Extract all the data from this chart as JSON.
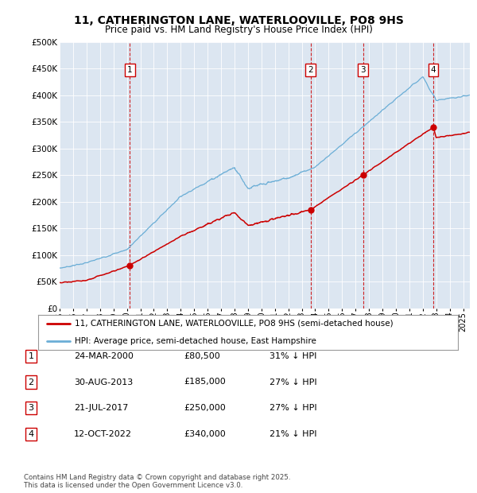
{
  "title": "11, CATHERINGTON LANE, WATERLOOVILLE, PO8 9HS",
  "subtitle": "Price paid vs. HM Land Registry's House Price Index (HPI)",
  "legend_line1": "11, CATHERINGTON LANE, WATERLOOVILLE, PO8 9HS (semi-detached house)",
  "legend_line2": "HPI: Average price, semi-detached house, East Hampshire",
  "footer": "Contains HM Land Registry data © Crown copyright and database right 2025.\nThis data is licensed under the Open Government Licence v3.0.",
  "hpi_color": "#6baed6",
  "price_color": "#cc0000",
  "box_edge_color": "#cc0000",
  "background_color": "#dce6f1",
  "ylim": [
    0,
    500000
  ],
  "yticks": [
    0,
    50000,
    100000,
    150000,
    200000,
    250000,
    300000,
    350000,
    400000,
    450000,
    500000
  ],
  "ytick_labels": [
    "£0",
    "£50K",
    "£100K",
    "£150K",
    "£200K",
    "£250K",
    "£300K",
    "£350K",
    "£400K",
    "£450K",
    "£500K"
  ],
  "xlim_start": 1995.0,
  "xlim_end": 2025.5,
  "xtick_years": [
    1995,
    1996,
    1997,
    1998,
    1999,
    2000,
    2001,
    2002,
    2003,
    2004,
    2005,
    2006,
    2007,
    2008,
    2009,
    2010,
    2011,
    2012,
    2013,
    2014,
    2015,
    2016,
    2017,
    2018,
    2019,
    2020,
    2021,
    2022,
    2023,
    2024,
    2025
  ],
  "sales": [
    {
      "label": "1",
      "date_x": 2000.23,
      "price": 80500,
      "date_str": "24-MAR-2000",
      "price_str": "£80,500",
      "pct_str": "31% ↓ HPI"
    },
    {
      "label": "2",
      "date_x": 2013.66,
      "price": 185000,
      "date_str": "30-AUG-2013",
      "price_str": "£185,000",
      "pct_str": "27% ↓ HPI"
    },
    {
      "label": "3",
      "date_x": 2017.55,
      "price": 250000,
      "date_str": "21-JUL-2017",
      "price_str": "£250,000",
      "pct_str": "27% ↓ HPI"
    },
    {
      "label": "4",
      "date_x": 2022.78,
      "price": 340000,
      "date_str": "12-OCT-2022",
      "price_str": "£340,000",
      "pct_str": "21% ↓ HPI"
    }
  ]
}
